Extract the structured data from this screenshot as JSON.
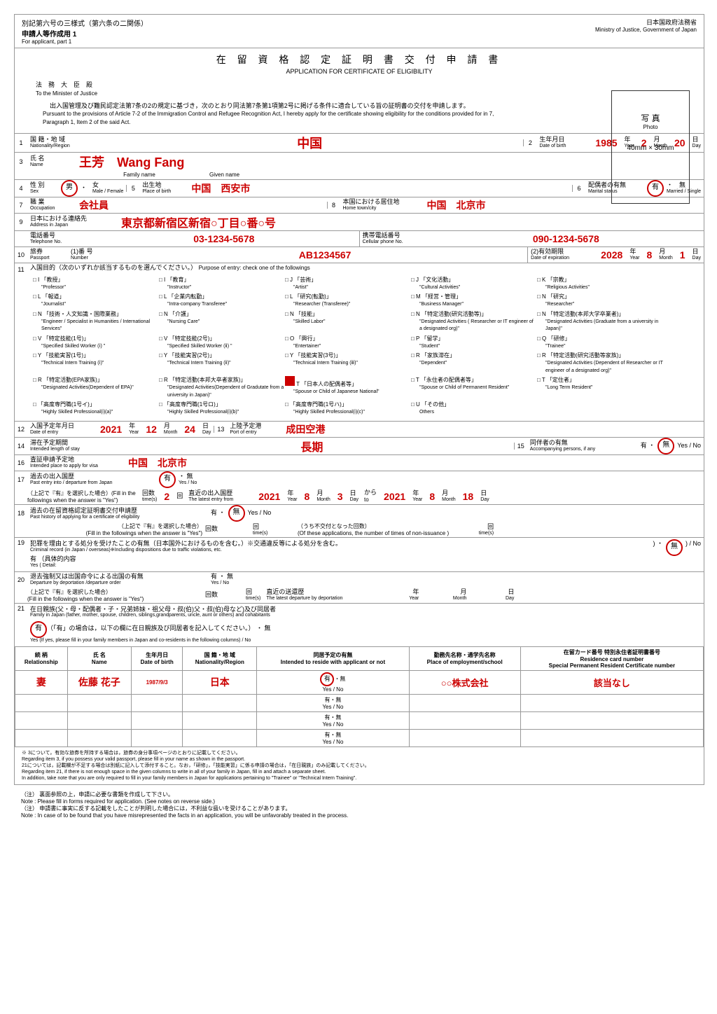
{
  "form": {
    "id": "別記第六号の三様式（第六条の二関係）",
    "part": "申請人等作成用 1",
    "part_en": "For applicant, part 1",
    "ministry": "日本国政府法務省",
    "ministry_en": "Ministry of Justice, Government of Japan"
  },
  "title": {
    "jp": "在 留 資 格 認 定 証 明 書 交 付 申 請 書",
    "en": "APPLICATION FOR CERTIFICATE OF ELIGIBILITY"
  },
  "photo": {
    "label": "写 真",
    "label_en": "Photo",
    "size": "40mm × 30mm"
  },
  "addressee": {
    "jp": "法　務　大　臣　殿",
    "en": "To the Minister of Justice"
  },
  "intro": {
    "jp": "出入国管理及び難民認定法第7条の2の規定に基づき，次のとおり同法第7条第1項第2号に掲げる条件に適合している旨の証明書の交付を申請します。",
    "en": "Pursuant to the provisions of Article 7-2 of the Immigration Control and Refugee Recognition Act, I hereby apply for the certificate showing eligibility for the conditions provided for in 7, Paragraph 1, Item 2 of the said Act."
  },
  "f": {
    "nationality": {
      "n": "1",
      "jp": "国 籍・地 域",
      "en": "Nationality/Region",
      "v": "中国"
    },
    "dob": {
      "n": "2",
      "jp": "生年月日",
      "en": "Date of birth",
      "y": "1985",
      "m": "2",
      "d": "20"
    },
    "name": {
      "n": "3",
      "jp": "氏 名",
      "en": "Name",
      "v": "王芳　Wang Fang",
      "family": "Family name",
      "given": "Given name"
    },
    "sex": {
      "n": "4",
      "jp": "性 別",
      "en": "Sex",
      "male": "男",
      "female": "女",
      "male_en": "Male",
      "female_en": "Female",
      "v": "男"
    },
    "birthplace": {
      "n": "5",
      "jp": "出生地",
      "en": "Place of birth",
      "v": "中国　西安市"
    },
    "marital": {
      "n": "6",
      "jp": "配偶者の有無",
      "en": "Marital status",
      "married": "有",
      "single": "無",
      "married_en": "Married",
      "single_en": "Single"
    },
    "occupation": {
      "n": "7",
      "jp": "職 業",
      "en": "Occupation",
      "v": "会社員"
    },
    "hometown": {
      "n": "8",
      "jp": "本国における居住地",
      "en": "Home town/city",
      "v": "中国　北京市"
    },
    "address": {
      "n": "9",
      "jp": "日本における連絡先",
      "en": "Address in Japan",
      "v": "東京都新宿区新宿○丁目○番○号"
    },
    "tel": {
      "jp": "電話番号",
      "en": "Telephone No.",
      "v": "03-1234-5678"
    },
    "cell": {
      "jp": "携帯電話番号",
      "en": "Cellular phone No.",
      "v": "090-1234-5678"
    },
    "passport": {
      "n": "10",
      "jp": "旅券",
      "en": "Passport",
      "num_jp": "(1)番 号",
      "num_en": "Number",
      "num": "AB1234567",
      "exp_jp": "(2)有効期限",
      "exp_en": "Date of expiration",
      "y": "2028",
      "m": "8",
      "d": "1"
    },
    "purpose": {
      "n": "11",
      "jp": "入国目的（次のいずれか該当するものを選んでください。）",
      "en": "Purpose of entry: check one of the followings"
    },
    "entry": {
      "n": "12",
      "jp": "入国予定年月日",
      "en": "Date of entry",
      "y": "2021",
      "m": "12",
      "d": "24"
    },
    "port": {
      "n": "13",
      "jp": "上陸予定港",
      "en": "Port of entry",
      "v": "成田空港"
    },
    "stay": {
      "n": "14",
      "jp": "滞在予定期間",
      "en": "Intended length of stay",
      "v": "長期"
    },
    "accomp": {
      "n": "15",
      "jp": "同伴者の有無",
      "en": "Accompanying persons, if any",
      "yes": "有",
      "no": "無"
    },
    "visa": {
      "n": "16",
      "jp": "査証申請予定地",
      "en": "Intended place to apply for visa",
      "v": "中国　北京市"
    },
    "past": {
      "n": "17",
      "jp": "過去の出入国歴",
      "en": "Past entry into / departure from Japan",
      "times": "2",
      "last_jp": "直近の出入国歴",
      "last_en": "The latest entry from",
      "fy": "2021",
      "fm": "8",
      "fd": "3",
      "ty": "2021",
      "tm": "8",
      "td": "18"
    },
    "cert": {
      "n": "18",
      "jp": "過去の在留資格認定証明書交付申請歴",
      "en": "Past history of applying for a certificate of eligibility"
    },
    "crime": {
      "n": "19",
      "jp": "犯罪を理由とする処分を受けたことの有無（日本国外におけるものを含む。）※交通違反等による処分を含む。",
      "en": "Criminal record (in Japan / overseas)※Including dispositions due to traffic violations, etc.",
      "detail": "有 （具体的内容",
      "detail_en": "Yes ( Detail:"
    },
    "deport": {
      "n": "20",
      "jp": "退去強制又は出国命令による出国の有無",
      "en": "Departure by deportation /departure order"
    },
    "family": {
      "n": "21",
      "jp": "在日親族(父・母・配偶者・子・兄弟姉妹・祖父母・叔(伯)父・叔(伯)母など)及び同居者",
      "en": "Family in Japan (father, mother, spouse, children, siblings,grandparents, uncle, aunt or others) and cohabitants"
    }
  },
  "purposes": [
    {
      "c": "I",
      "jp": "「教授」",
      "en": "\"Professor\""
    },
    {
      "c": "I",
      "jp": "「教育」",
      "en": "\"Instructor\""
    },
    {
      "c": "J",
      "jp": "「芸術」",
      "en": "\"Artist\""
    },
    {
      "c": "J",
      "jp": "「文化活動」",
      "en": "\"Cultural Activities\""
    },
    {
      "c": "K",
      "jp": "「宗教」",
      "en": "\"Religious Activities\""
    },
    {
      "c": "L",
      "jp": "「報道」",
      "en": "\"Journalist\""
    },
    {
      "c": "L",
      "jp": "「企業内転勤」",
      "en": "\"Intra-company Transferee\""
    },
    {
      "c": "L",
      "jp": "「研究(転勤)」",
      "en": "\"Researcher (Transferee)\""
    },
    {
      "c": "M",
      "jp": "「経営・管理」",
      "en": "\"Business Manager\""
    },
    {
      "c": "N",
      "jp": "「研究」",
      "en": "\"Researcher\""
    },
    {
      "c": "N",
      "jp": "「技術・人文知識・国際業務」",
      "en": "\"Engineer / Specialist in Humanities / International Services\""
    },
    {
      "c": "N",
      "jp": "「介護」",
      "en": "\"Nursing Care\""
    },
    {
      "c": "N",
      "jp": "「技能」",
      "en": "\"Skilled Labor\""
    },
    {
      "c": "N",
      "jp": "「特定活動(研究活動等)」",
      "en": "\"Designated Activities ( Researcher or IT engineer of a designated org)\""
    },
    {
      "c": "N",
      "jp": "「特定活動(本邦大学卒業者)」",
      "en": "\"Designated Activities (Graduate from a university in Japan)\""
    },
    {
      "c": "V",
      "jp": "「特定技能(1号)」",
      "en": "\"Specified Skilled Worker (ⅰ) \""
    },
    {
      "c": "V",
      "jp": "「特定技能(2号)」",
      "en": "\"Specified Skilled Worker (ⅱ) \""
    },
    {
      "c": "O",
      "jp": "「興行」",
      "en": "\"Entertainer\""
    },
    {
      "c": "P",
      "jp": "「留学」",
      "en": "\"Student\""
    },
    {
      "c": "Q",
      "jp": "「研修」",
      "en": "\"Trainee\""
    },
    {
      "c": "Y",
      "jp": "「技能実習(1号)」",
      "en": "\"Technical Intern Training (ⅰ)\""
    },
    {
      "c": "Y",
      "jp": "「技能実習(2号)」",
      "en": "\"Technical Intern Training (ⅱ)\""
    },
    {
      "c": "Y",
      "jp": "「技能実習(3号)」",
      "en": "\"Technical Intern Training (ⅲ)\""
    },
    {
      "c": "R",
      "jp": "「家族滞在」",
      "en": "\"Dependent\""
    },
    {
      "c": "R",
      "jp": "「特定活動(研究活動等家族)」",
      "en": "\"Designated Activities (Dependent of Researcher or IT engineer of a designated org)\""
    },
    {
      "c": "R",
      "jp": "「特定活動(EPA家族)」",
      "en": "\"Designated Activities(Dependent of EPA)\""
    },
    {
      "c": "R",
      "jp": "「特定活動(本邦大卒者家族)」",
      "en": "\"Designated Activities(Dependent of Gradutate from a university in Japan)\""
    },
    {
      "c": "T",
      "jp": "「日本人の配偶者等」",
      "en": "\"Spouse or Child of Japanese National\"",
      "checked": true
    },
    {
      "c": "T",
      "jp": "「永住者の配偶者等」",
      "en": "\"Spouse or Child of Permanent Resident\""
    },
    {
      "c": "T",
      "jp": "「定住者」",
      "en": "\"Long Term Resident\""
    },
    {
      "c": "",
      "jp": "「高度専門職(1号イ)」",
      "en": "\"Highly Skilled Professional(i)(a)\""
    },
    {
      "c": "",
      "jp": "「高度専門職(1号ロ)」",
      "en": "\"Highly Skilled Professional(i)(b)\""
    },
    {
      "c": "",
      "jp": "「高度専門職(1号ハ)」",
      "en": "\"Highly Skilled Professional(i)(c)\""
    },
    {
      "c": "U",
      "jp": "「その他」",
      "en": "Others"
    }
  ],
  "famtbl": {
    "cols": [
      {
        "jp": "続 柄",
        "en": "Relationship"
      },
      {
        "jp": "氏 名",
        "en": "Name"
      },
      {
        "jp": "生年月日",
        "en": "Date of birth"
      },
      {
        "jp": "国 籍・地 域",
        "en": "Nationality/Region"
      },
      {
        "jp": "同居予定の有無",
        "en": "Intended to reside with applicant or not"
      },
      {
        "jp": "勤務先名称・通学先名称",
        "en": "Place of employment/school"
      },
      {
        "jp": "在留カード番号\n特別永住者証明書番号",
        "en": "Residence card number\nSpecial Permanent Resident Certificate number"
      }
    ],
    "row": {
      "rel": "妻",
      "name": "佐藤 花子",
      "dob": "1987/9/3",
      "nat": "日本",
      "reside": "有",
      "work": "○○株式会社",
      "card": "該当なし"
    }
  },
  "yn": {
    "yes": "有",
    "no": "無",
    "yes_en": "Yes",
    "no_en": "No"
  },
  "units": {
    "y": "年",
    "y_en": "Year",
    "m": "月",
    "m_en": "Month",
    "d": "日",
    "d_en": "Day",
    "times": "回",
    "times_en": "time(s)"
  },
  "notes": {
    "n1": "※ 3について，有効な旅券を所持する場合は，旅券の身分事項ページのとおりに記載してください。",
    "n1en": "Regarding item 3, if you possess your valid passport, please fill in your name as shown in the passport.",
    "n2": "21については，記載欄が不足する場合は別紙に記入して添付すること。なお，「研修」，「技能実習」に係る申請の場合は，「在日親族」のみ記載してください。",
    "n2en": "Regarding item 21, if there is not enough space in the given columns to write in all of your family in Japan, fill in and attach a separate sheet.",
    "n3": "In addition, take note that you are only required to fill in your family members in Japan for applications pertaining to \"Trainee\" or \"Technical Intern Training\"."
  },
  "footer": {
    "f1": "（注） 裏面参照の上，申請に必要な書類を作成して下さい。",
    "f1en": "Note : Please fill in forms required for application. (See notes on reverse side.)",
    "f2": "（注） 申請書に事実に反する記載をしたことが判明した場合には，不利益な扱いを受けることがあります。",
    "f2en": "Note : In case of to be found that you have misrepresented the facts in an application, you will be unfavorably treated in the process."
  }
}
